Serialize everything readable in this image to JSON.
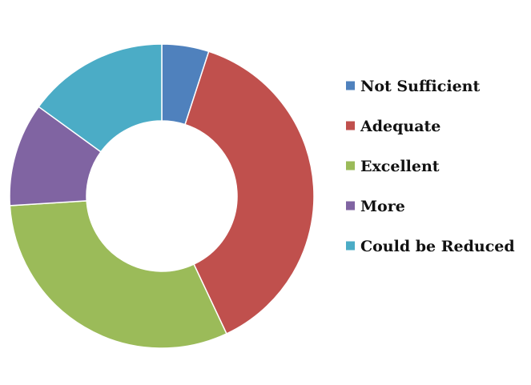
{
  "chart_data": {
    "type": "pie",
    "donut": true,
    "categories": [
      "Not Sufficient",
      "Adequate",
      "Excellent",
      "More",
      "Could be Reduced"
    ],
    "values": [
      5,
      38,
      31,
      11,
      15
    ],
    "colors": [
      "#4F81BD",
      "#C0504D",
      "#9BBB59",
      "#8064A2",
      "#4BACC6"
    ],
    "legend_position": "right",
    "title": ""
  }
}
